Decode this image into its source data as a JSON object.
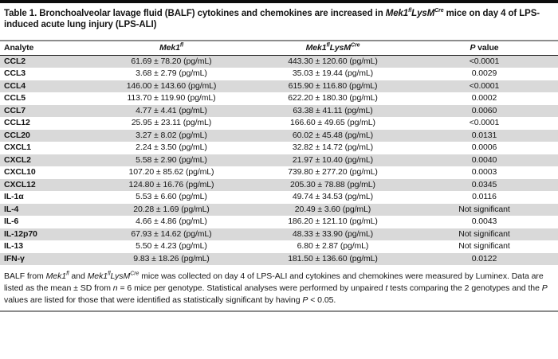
{
  "table": {
    "title_html": "Table 1. Bronchoalveolar lavage fluid (BALF) cytokines and chemokines are increased in <i>Mek1<sup>fl</sup>LysM<sup>Cre</sup></i> mice on day 4 of LPS-induced acute lung injury (LPS-ALI)",
    "columns": [
      {
        "label_html": "Analyte"
      },
      {
        "label_html": "<i>Mek1<sup>fl</sup></i>"
      },
      {
        "label_html": "<i>Mek1<sup>fl</sup>LysM<sup>Cre</sup></i>"
      },
      {
        "label_html": "<i>P</i> value"
      }
    ],
    "rows": [
      {
        "analyte": "CCL2",
        "mek1fl": "61.69 ± 78.20 (pg/mL)",
        "mek1fl_lysmcre": "443.30 ± 120.60 (pg/mL)",
        "p_value": "<0.0001"
      },
      {
        "analyte": "CCL3",
        "mek1fl": "3.68 ± 2.79 (pg/mL)",
        "mek1fl_lysmcre": "35.03 ± 19.44 (pg/mL)",
        "p_value": "0.0029"
      },
      {
        "analyte": "CCL4",
        "mek1fl": "146.00 ± 143.60 (pg/mL)",
        "mek1fl_lysmcre": "615.90 ± 116.80 (pg/mL)",
        "p_value": "<0.0001"
      },
      {
        "analyte": "CCL5",
        "mek1fl": "113.70 ± 119.90 (pg/mL)",
        "mek1fl_lysmcre": "622.20 ± 180.30 (pg/mL)",
        "p_value": "0.0002"
      },
      {
        "analyte": "CCL7",
        "mek1fl": "4.77 ± 4.41 (pg/mL)",
        "mek1fl_lysmcre": "63.38 ± 41.11 (pg/mL)",
        "p_value": "0.0060"
      },
      {
        "analyte": "CCL12",
        "mek1fl": "25.95 ± 23.11 (pg/mL)",
        "mek1fl_lysmcre": "166.60 ± 49.65 (pg/mL)",
        "p_value": "<0.0001"
      },
      {
        "analyte": "CCL20",
        "mek1fl": "3.27 ± 8.02 (pg/mL)",
        "mek1fl_lysmcre": "60.02 ± 45.48 (pg/mL)",
        "p_value": "0.0131"
      },
      {
        "analyte": "CXCL1",
        "mek1fl": "2.24 ± 3.50 (pg/mL)",
        "mek1fl_lysmcre": "32.82 ± 14.72 (pg/mL)",
        "p_value": "0.0006"
      },
      {
        "analyte": "CXCL2",
        "mek1fl": "5.58 ± 2.90 (pg/mL)",
        "mek1fl_lysmcre": "21.97 ± 10.40 (pg/mL)",
        "p_value": "0.0040"
      },
      {
        "analyte": "CXCL10",
        "mek1fl": "107.20 ± 85.62 (pg/mL)",
        "mek1fl_lysmcre": "739.80 ± 277.20 (pg/mL)",
        "p_value": "0.0003"
      },
      {
        "analyte": "CXCL12",
        "mek1fl": "124.80 ± 16.76 (pg/mL)",
        "mek1fl_lysmcre": "205.30 ± 78.88 (pg/mL)",
        "p_value": "0.0345"
      },
      {
        "analyte": "IL-1α",
        "mek1fl": "5.53 ± 6.60 (pg/mL)",
        "mek1fl_lysmcre": "49.74 ± 34.53 (pg/mL)",
        "p_value": "0.0116"
      },
      {
        "analyte": "IL-4",
        "mek1fl": "20.28 ± 1.69 (pg/mL)",
        "mek1fl_lysmcre": "20.49 ± 3.60 (pg/mL)",
        "p_value": "Not significant"
      },
      {
        "analyte": "IL-6",
        "mek1fl": "4.66 ± 4.86 (pg/mL)",
        "mek1fl_lysmcre": "186.20 ± 121.10 (pg/mL)",
        "p_value": "0.0043"
      },
      {
        "analyte": "IL-12p70",
        "mek1fl": "67.93 ± 14.62 (pg/mL)",
        "mek1fl_lysmcre": "48.33 ± 33.90 (pg/mL)",
        "p_value": "Not significant"
      },
      {
        "analyte": "IL-13",
        "mek1fl": "5.50 ± 4.23 (pg/mL)",
        "mek1fl_lysmcre": "6.80 ± 2.87 (pg/mL)",
        "p_value": "Not significant"
      },
      {
        "analyte": "IFN-γ",
        "mek1fl": "9.83 ± 18.26 (pg/mL)",
        "mek1fl_lysmcre": "181.50 ± 136.60 (pg/mL)",
        "p_value": "0.0122"
      }
    ],
    "footnote_html": "BALF from <i>Mek1<sup>fl</sup></i> and <i>Mek1<sup>fl</sup>LysM<sup>Cre</sup></i> mice was collected on day 4 of LPS-ALI and cytokines and chemokines were measured by Luminex. Data are listed as the mean ± SD from <i>n</i> = 6 mice per genotype. Statistical analyses were performed by unpaired <i>t</i> tests comparing the 2 genotypes and the <i>P</i> values are listed for those that were identified as statistically significant by having <i>P</i> &lt; 0.05.",
    "colors": {
      "row_shade": "#d9d9d9",
      "rule_gray": "#8c8c8c",
      "top_bar": "#0d0d0d",
      "text": "#151515"
    }
  }
}
